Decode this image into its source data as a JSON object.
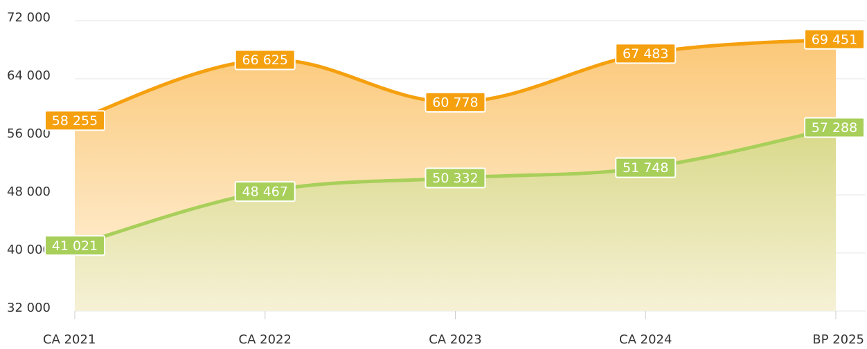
{
  "chart_data": {
    "type": "area",
    "categories": [
      "CA 2021",
      "CA 2022",
      "CA 2023",
      "CA 2024",
      "BP 2025"
    ],
    "series": [
      {
        "color": "#f5a00f",
        "values": [
          58255,
          66625,
          60778,
          67483,
          69451
        ],
        "value_labels": [
          "58 255",
          "66 625",
          "60 778",
          "67 483",
          "69 451"
        ]
      },
      {
        "color": "#a8cf5a",
        "values": [
          41021,
          48467,
          50332,
          51748,
          57288
        ],
        "value_labels": [
          "41 021",
          "48 467",
          "50 332",
          "51 748",
          "57 288"
        ]
      }
    ],
    "ylim": [
      32000,
      72000
    ],
    "yticks": [
      {
        "value": 32000,
        "label": "32 000"
      },
      {
        "value": 40000,
        "label": "40 000"
      },
      {
        "value": 48000,
        "label": "48 000"
      },
      {
        "value": 56000,
        "label": "56 000"
      },
      {
        "value": 64000,
        "label": "64 000"
      },
      {
        "value": 72000,
        "label": "72 000"
      }
    ],
    "grid": true
  }
}
